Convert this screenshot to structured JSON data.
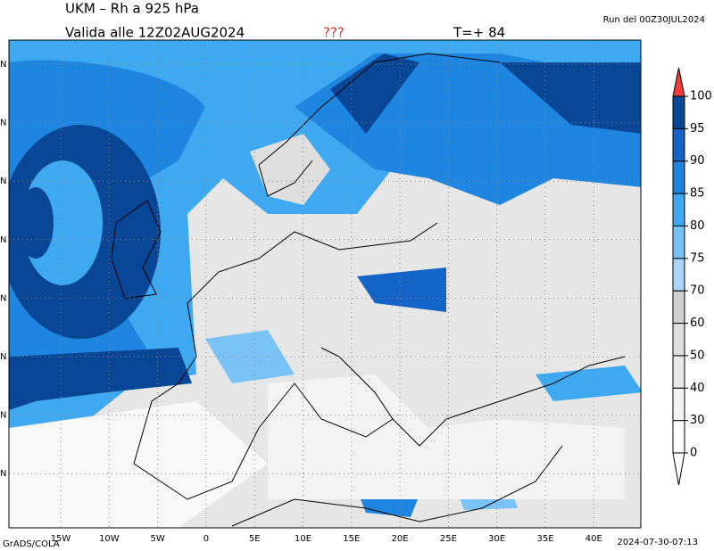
{
  "header": {
    "title": "UKM – Rh a 925 hPa",
    "valid": "Valida alle 12Z02AUG2024",
    "flag": "???",
    "step": "T=+ 84",
    "run": "Run del 00Z30JUL2024"
  },
  "map": {
    "lon_labels": [
      "15W",
      "10W",
      "5W",
      "0",
      "5E",
      "10E",
      "15E",
      "20E",
      "25E",
      "30E",
      "35E",
      "40E"
    ],
    "lat_labels": [
      "N",
      "N",
      "N",
      "N",
      "N",
      "N",
      "N",
      "N"
    ]
  },
  "colorbar": {
    "levels": [
      0,
      30,
      40,
      50,
      60,
      70,
      75,
      80,
      85,
      90,
      95,
      100
    ],
    "colors": [
      "#ffffff",
      "#f3f3f3",
      "#e8e8e8",
      "#dedede",
      "#d0d0d0",
      "#a8d6fa",
      "#78c2f5",
      "#3ea8f0",
      "#1e86e0",
      "#1464c8",
      "#0a4696"
    ],
    "over_color": "#f03c3c",
    "under_color": "#ffffff"
  },
  "footer": {
    "left": "GrADS/COLA",
    "right": "2024-07-30-07:13"
  }
}
